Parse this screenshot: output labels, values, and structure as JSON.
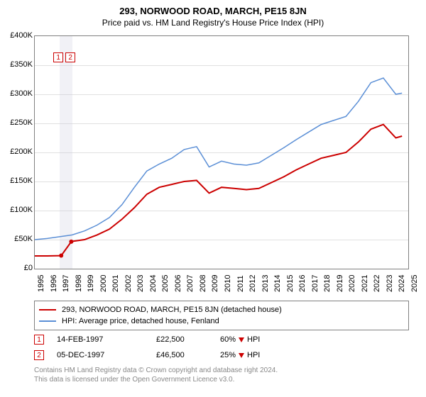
{
  "title": "293, NORWOOD ROAD, MARCH, PE15 8JN",
  "subtitle": "Price paid vs. HM Land Registry's House Price Index (HPI)",
  "chart": {
    "type": "line",
    "background_color": "#ffffff",
    "grid_color": "#e0e0e0",
    "border_color": "#808080",
    "x_years": [
      1995,
      1996,
      1997,
      1998,
      1999,
      2000,
      2001,
      2002,
      2003,
      2004,
      2005,
      2006,
      2007,
      2008,
      2009,
      2010,
      2011,
      2012,
      2013,
      2014,
      2015,
      2016,
      2017,
      2018,
      2019,
      2020,
      2021,
      2022,
      2023,
      2024,
      2025
    ],
    "xlim": [
      1995,
      2025
    ],
    "ylim": [
      0,
      400000
    ],
    "ytick_step": 50000,
    "ytick_labels": [
      "£0",
      "£50K",
      "£100K",
      "£150K",
      "£200K",
      "£250K",
      "£300K",
      "£350K",
      "£400K"
    ],
    "series": [
      {
        "name": "property",
        "label": "293, NORWOOD ROAD, MARCH, PE15 8JN (detached house)",
        "color": "#cc0000",
        "line_width": 2,
        "points": [
          [
            1995,
            22000
          ],
          [
            1996,
            22000
          ],
          [
            1997.12,
            22500
          ],
          [
            1997.93,
            46500
          ],
          [
            1998,
            47000
          ],
          [
            1999,
            50000
          ],
          [
            2000,
            58000
          ],
          [
            2001,
            68000
          ],
          [
            2002,
            85000
          ],
          [
            2003,
            105000
          ],
          [
            2004,
            128000
          ],
          [
            2005,
            140000
          ],
          [
            2006,
            145000
          ],
          [
            2007,
            150000
          ],
          [
            2008,
            152000
          ],
          [
            2009,
            130000
          ],
          [
            2010,
            140000
          ],
          [
            2011,
            138000
          ],
          [
            2012,
            136000
          ],
          [
            2013,
            138000
          ],
          [
            2014,
            148000
          ],
          [
            2015,
            158000
          ],
          [
            2016,
            170000
          ],
          [
            2017,
            180000
          ],
          [
            2018,
            190000
          ],
          [
            2019,
            195000
          ],
          [
            2020,
            200000
          ],
          [
            2021,
            218000
          ],
          [
            2022,
            240000
          ],
          [
            2023,
            248000
          ],
          [
            2024,
            225000
          ],
          [
            2024.5,
            228000
          ]
        ]
      },
      {
        "name": "hpi",
        "label": "HPI: Average price, detached house, Fenland",
        "color": "#5b8fd6",
        "line_width": 1.5,
        "points": [
          [
            1995,
            50000
          ],
          [
            1996,
            52000
          ],
          [
            1997,
            55000
          ],
          [
            1998,
            58000
          ],
          [
            1999,
            65000
          ],
          [
            2000,
            75000
          ],
          [
            2001,
            88000
          ],
          [
            2002,
            110000
          ],
          [
            2003,
            140000
          ],
          [
            2004,
            168000
          ],
          [
            2005,
            180000
          ],
          [
            2006,
            190000
          ],
          [
            2007,
            205000
          ],
          [
            2008,
            210000
          ],
          [
            2009,
            175000
          ],
          [
            2010,
            185000
          ],
          [
            2011,
            180000
          ],
          [
            2012,
            178000
          ],
          [
            2013,
            182000
          ],
          [
            2014,
            195000
          ],
          [
            2015,
            208000
          ],
          [
            2016,
            222000
          ],
          [
            2017,
            235000
          ],
          [
            2018,
            248000
          ],
          [
            2019,
            255000
          ],
          [
            2020,
            262000
          ],
          [
            2021,
            288000
          ],
          [
            2022,
            320000
          ],
          [
            2023,
            328000
          ],
          [
            2024,
            300000
          ],
          [
            2024.5,
            302000
          ]
        ]
      }
    ],
    "sale_markers": [
      {
        "n": "1",
        "year": 1997.12,
        "price": 22500
      },
      {
        "n": "2",
        "year": 1997.93,
        "price": 46500
      }
    ],
    "marker_band": {
      "from": 1997.0,
      "to": 1998.0,
      "color": "rgba(200,200,220,0.25)"
    },
    "marker_box_color": "#cc0000",
    "label_fontsize": 11
  },
  "legend": {
    "border_color": "#808080",
    "items": [
      {
        "color": "#cc0000",
        "bind": "chart.series.0.label"
      },
      {
        "color": "#5b8fd6",
        "bind": "chart.series.1.label"
      }
    ]
  },
  "sales": [
    {
      "n": "1",
      "date": "14-FEB-1997",
      "price": "£22,500",
      "diff_pct": "60%",
      "diff_dir": "down",
      "diff_ref": "HPI"
    },
    {
      "n": "2",
      "date": "05-DEC-1997",
      "price": "£46,500",
      "diff_pct": "25%",
      "diff_dir": "down",
      "diff_ref": "HPI"
    }
  ],
  "footer": {
    "line1": "Contains HM Land Registry data © Crown copyright and database right 2024.",
    "line2": "This data is licensed under the Open Government Licence v3.0."
  }
}
